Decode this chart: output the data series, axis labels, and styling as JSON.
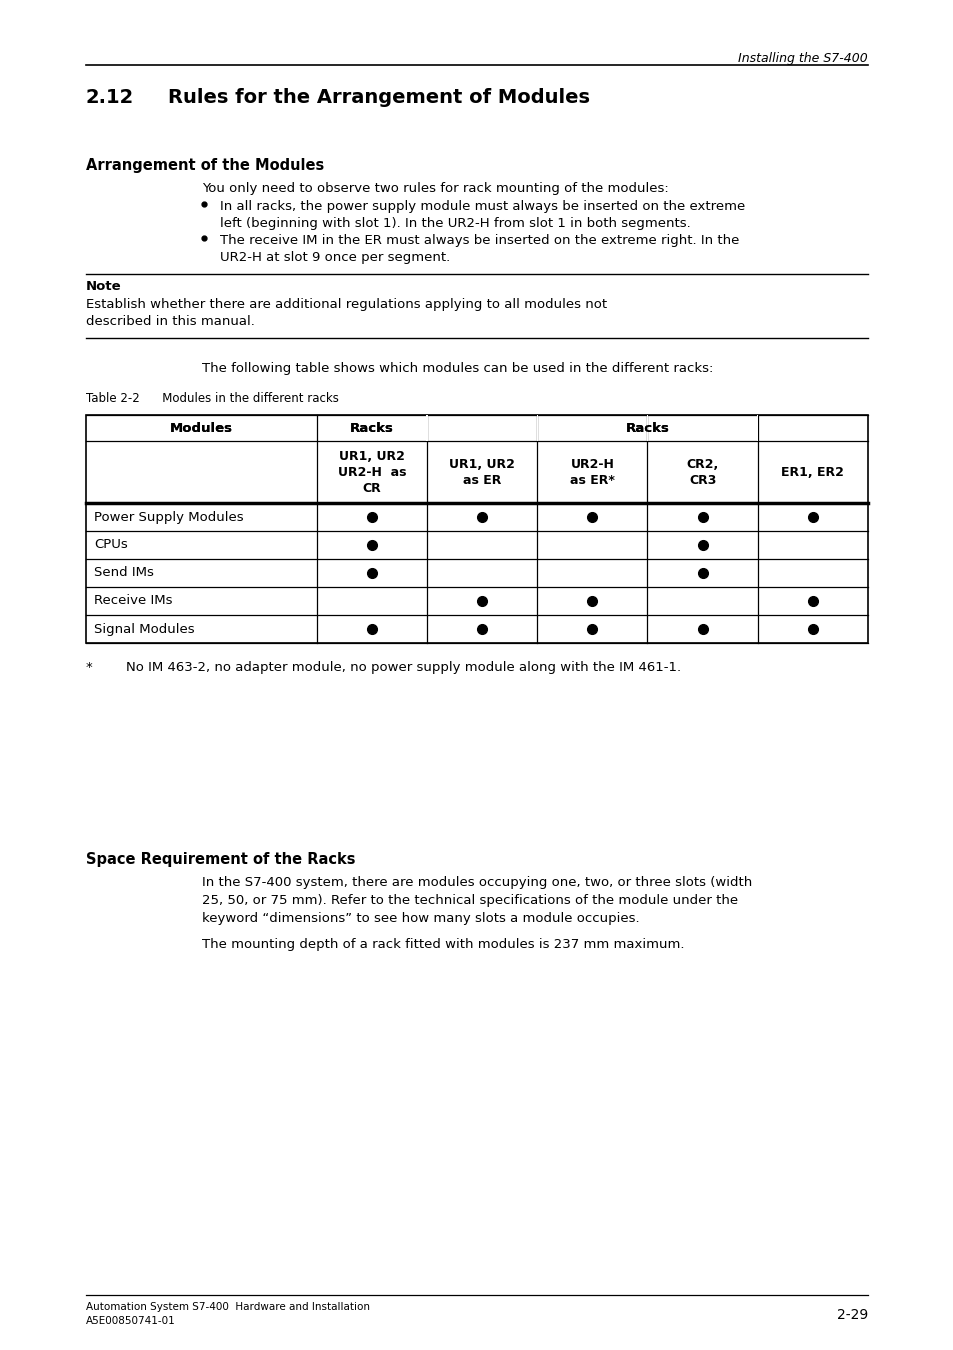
{
  "page_header_right": "Installing the S7-400",
  "section_number": "2.12",
  "section_title": "Rules for the Arrangement of Modules",
  "subsection1_title": "Arrangement of the Modules",
  "para1": "You only need to observe two rules for rack mounting of the modules:",
  "bullet1": "In all racks, the power supply module must always be inserted on the extreme\nleft (beginning with slot 1). In the UR2-H from slot 1 in both segments.",
  "bullet2": "The receive IM in the ER must always be inserted on the extreme right. In the\nUR2-H at slot 9 once per segment.",
  "note_label": "Note",
  "note_text": "Establish whether there are additional regulations applying to all modules not\ndescribed in this manual.",
  "para2": "The following table shows which modules can be used in the different racks:",
  "table_caption": "Table 2-2      Modules in the different racks",
  "table_col_headers": [
    "UR1, UR2\nUR2-H  as\nCR",
    "UR1, UR2\nas ER",
    "UR2-H\nas ER*",
    "CR2,\nCR3",
    "ER1, ER2"
  ],
  "table_rows": [
    [
      "Power Supply Modules",
      true,
      true,
      true,
      true,
      true
    ],
    [
      "CPUs",
      true,
      false,
      false,
      true,
      false
    ],
    [
      "Send IMs",
      true,
      false,
      false,
      true,
      false
    ],
    [
      "Receive IMs",
      false,
      true,
      true,
      false,
      true
    ],
    [
      "Signal Modules",
      true,
      true,
      true,
      true,
      true
    ]
  ],
  "footnote_star": "*",
  "footnote_text": "No IM 463-2, no adapter module, no power supply module along with the IM 461-1.",
  "subsection2_title": "Space Requirement of the Racks",
  "para3_line1": "In the S7-400 system, there are modules occupying one, two, or three slots (width",
  "para3_line2": "25, 50, or 75 mm). Refer to the technical specifications of the module under the",
  "para3_line3": "keyword “dimensions” to see how many slots a module occupies.",
  "para4": "The mounting depth of a rack fitted with modules is 237 mm maximum.",
  "footer_left1": "Automation System S7-400  Hardware and Installation",
  "footer_left2": "A5E00850741-01",
  "footer_right": "2-29",
  "bg_color": "#ffffff"
}
